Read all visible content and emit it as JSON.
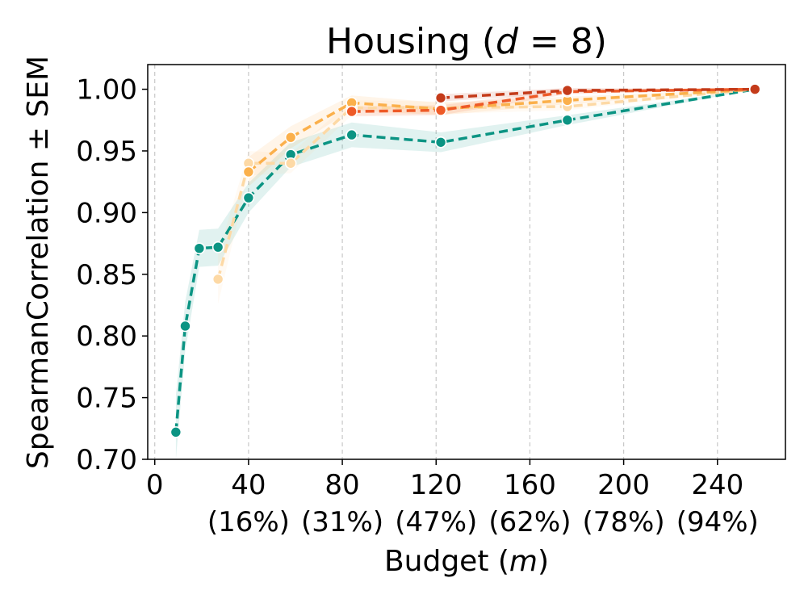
{
  "chart_data": {
    "type": "line",
    "title": "Housing (d = 8)",
    "title_parts": {
      "prefix": "Housing (",
      "var": "d",
      "eq": " = 8)"
    },
    "xlabel_parts": {
      "prefix": "Budget (",
      "var": "m",
      "suffix": ")"
    },
    "ylabel": "SpearmanCorrelation ± SEM",
    "xlim": [
      -3,
      269
    ],
    "ylim": [
      0.7,
      1.02
    ],
    "x_ticks": [
      {
        "value": 0,
        "label": "0",
        "sub": ""
      },
      {
        "value": 40,
        "label": "40",
        "sub": "(16%)"
      },
      {
        "value": 80,
        "label": "80",
        "sub": "(31%)"
      },
      {
        "value": 120,
        "label": "120",
        "sub": "(47%)"
      },
      {
        "value": 160,
        "label": "160",
        "sub": "(62%)"
      },
      {
        "value": 200,
        "label": "200",
        "sub": "(78%)"
      },
      {
        "value": 240,
        "label": "240",
        "sub": "(94%)"
      }
    ],
    "y_ticks": [
      {
        "value": 0.7,
        "label": "0.70"
      },
      {
        "value": 0.75,
        "label": "0.75"
      },
      {
        "value": 0.8,
        "label": "0.80"
      },
      {
        "value": 0.85,
        "label": "0.85"
      },
      {
        "value": 0.9,
        "label": "0.90"
      },
      {
        "value": 0.95,
        "label": "0.95"
      },
      {
        "value": 1.0,
        "label": "1.00"
      }
    ],
    "grid": "vertical-dashed",
    "series": [
      {
        "name": "series-teal",
        "color": "#0b9483",
        "band_color": "#0b9483",
        "x": [
          9,
          13,
          19,
          27,
          40,
          58,
          84,
          122,
          176,
          256
        ],
        "y": [
          0.722,
          0.808,
          0.871,
          0.872,
          0.912,
          0.947,
          0.963,
          0.957,
          0.975,
          1.0
        ],
        "err": [
          0.03,
          0.02,
          0.015,
          0.015,
          0.012,
          0.01,
          0.01,
          0.008,
          0.004,
          0.0
        ]
      },
      {
        "name": "series-light-peach",
        "color": "#fdd9a5",
        "band_color": "#fdd9a5",
        "x": [
          27,
          40,
          58,
          84,
          122,
          176,
          256
        ],
        "y": [
          0.846,
          0.94,
          0.94,
          0.985,
          0.985,
          0.986,
          1.0
        ],
        "err": [
          0.02,
          0.01,
          0.008,
          0.006,
          0.005,
          0.003,
          0.0
        ]
      },
      {
        "name": "series-orange",
        "color": "#fbb04b",
        "band_color": "#fbb04b",
        "x": [
          40,
          58,
          84,
          122,
          176,
          256
        ],
        "y": [
          0.933,
          0.961,
          0.989,
          0.984,
          0.991,
          1.0
        ],
        "err": [
          0.012,
          0.009,
          0.006,
          0.005,
          0.003,
          0.0
        ]
      },
      {
        "name": "series-red-orange",
        "color": "#ee5a27",
        "band_color": "#ee5a27",
        "x": [
          84,
          122,
          176,
          256
        ],
        "y": [
          0.982,
          0.983,
          0.998,
          1.0
        ],
        "err": [
          0.004,
          0.004,
          0.002,
          0.0
        ]
      },
      {
        "name": "series-dark-red",
        "color": "#c43b1a",
        "band_color": "#c43b1a",
        "x": [
          122,
          176,
          256
        ],
        "y": [
          0.993,
          0.999,
          1.0
        ],
        "err": [
          0.003,
          0.002,
          0.0
        ]
      }
    ]
  }
}
